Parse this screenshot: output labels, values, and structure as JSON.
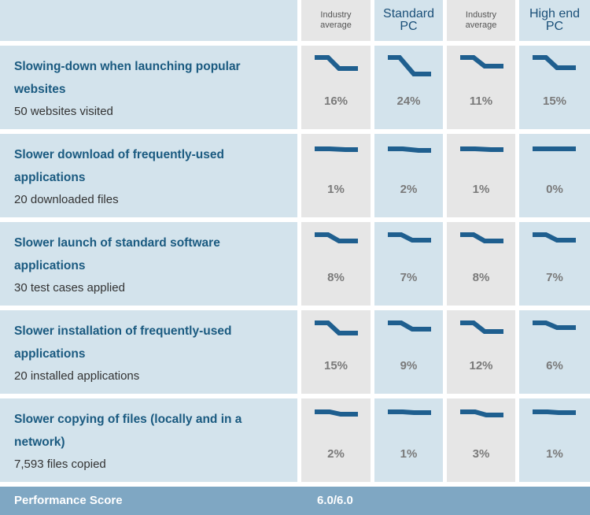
{
  "header": {
    "columns": [
      {
        "label": "Industry average",
        "style": "small"
      },
      {
        "label": "Standard PC",
        "style": "big"
      },
      {
        "label": "Industry average",
        "style": "small"
      },
      {
        "label": "High end PC",
        "style": "big"
      }
    ]
  },
  "rows": [
    {
      "title": "Slowing-down when launching popular websites",
      "subtitle": "50 websites visited",
      "values": [
        "16%",
        "24%",
        "11%",
        "15%"
      ]
    },
    {
      "title": "Slower download of frequently-used applications",
      "subtitle": "20 downloaded files",
      "values": [
        "1%",
        "2%",
        "1%",
        "0%"
      ]
    },
    {
      "title": "Slower launch of standard software applications",
      "subtitle": "30 test cases applied",
      "values": [
        "8%",
        "7%",
        "8%",
        "7%"
      ]
    },
    {
      "title": "Slower installation of frequently-used applications",
      "subtitle": "20 installed applications",
      "values": [
        "15%",
        "9%",
        "12%",
        "6%"
      ]
    },
    {
      "title": "Slower copying of files (locally and in a network)",
      "subtitle": "7,593 files copied",
      "values": [
        "2%",
        "1%",
        "3%",
        "1%"
      ]
    }
  ],
  "footer": {
    "label": "Performance Score",
    "value": "6.0/6.0"
  },
  "colors": {
    "line": "#1f5f8f",
    "accent_header": "#1a4f78",
    "score_bar": "#7fa7c3"
  }
}
